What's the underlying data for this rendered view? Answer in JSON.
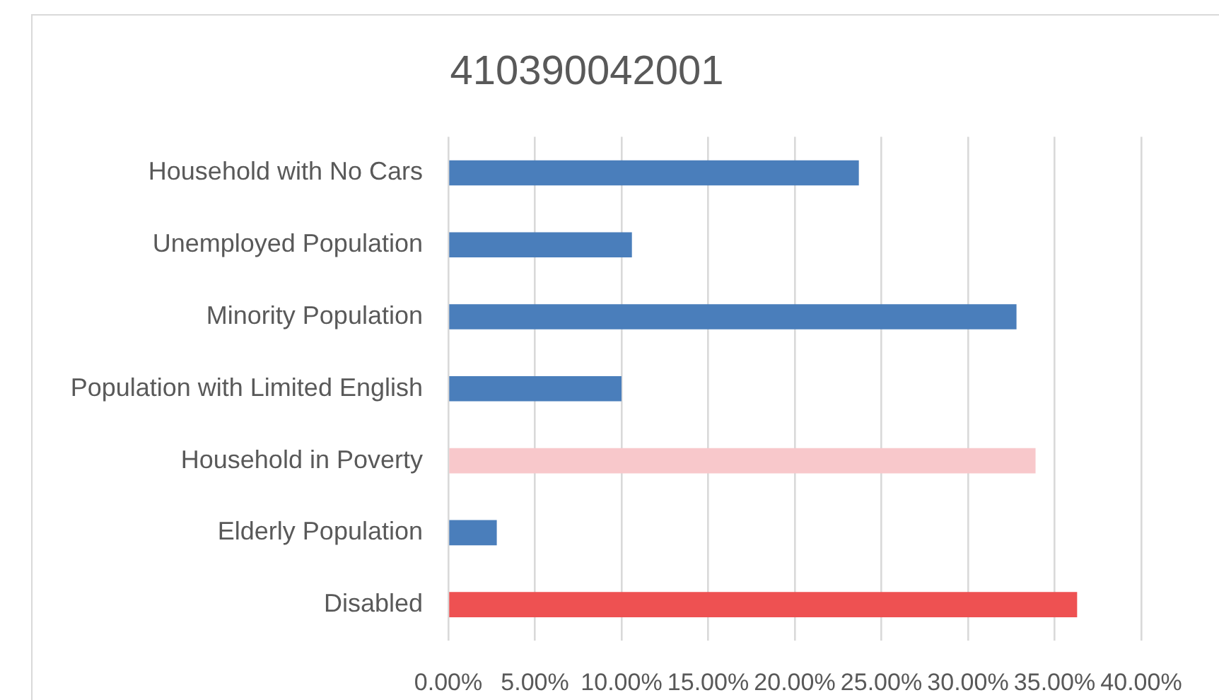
{
  "chart_data": {
    "type": "bar",
    "orientation": "horizontal",
    "title": "410390042001",
    "categories": [
      "Household with No Cars",
      "Unemployed Population",
      "Minority Population",
      "Population with Limited English",
      "Household in Poverty",
      "Elderly Population",
      "Disabled"
    ],
    "values": [
      23.7,
      10.6,
      32.8,
      10.0,
      33.9,
      2.8,
      36.3
    ],
    "colors": [
      "#4a7ebb",
      "#4a7ebb",
      "#4a7ebb",
      "#4a7ebb",
      "#f8c8cb",
      "#4a7ebb",
      "#ee5152"
    ],
    "xlim": [
      0,
      40
    ],
    "xticks": [
      {
        "value": 0,
        "label": "0.00%"
      },
      {
        "value": 5,
        "label": "5.00%"
      },
      {
        "value": 10,
        "label": "10.00%"
      },
      {
        "value": 15,
        "label": "15.00%"
      },
      {
        "value": 20,
        "label": "20.00%"
      },
      {
        "value": 25,
        "label": "25.00%"
      },
      {
        "value": 30,
        "label": "30.00%"
      },
      {
        "value": 35,
        "label": "35.00%"
      },
      {
        "value": 40,
        "label": "40.00%"
      }
    ],
    "grid": "x"
  }
}
